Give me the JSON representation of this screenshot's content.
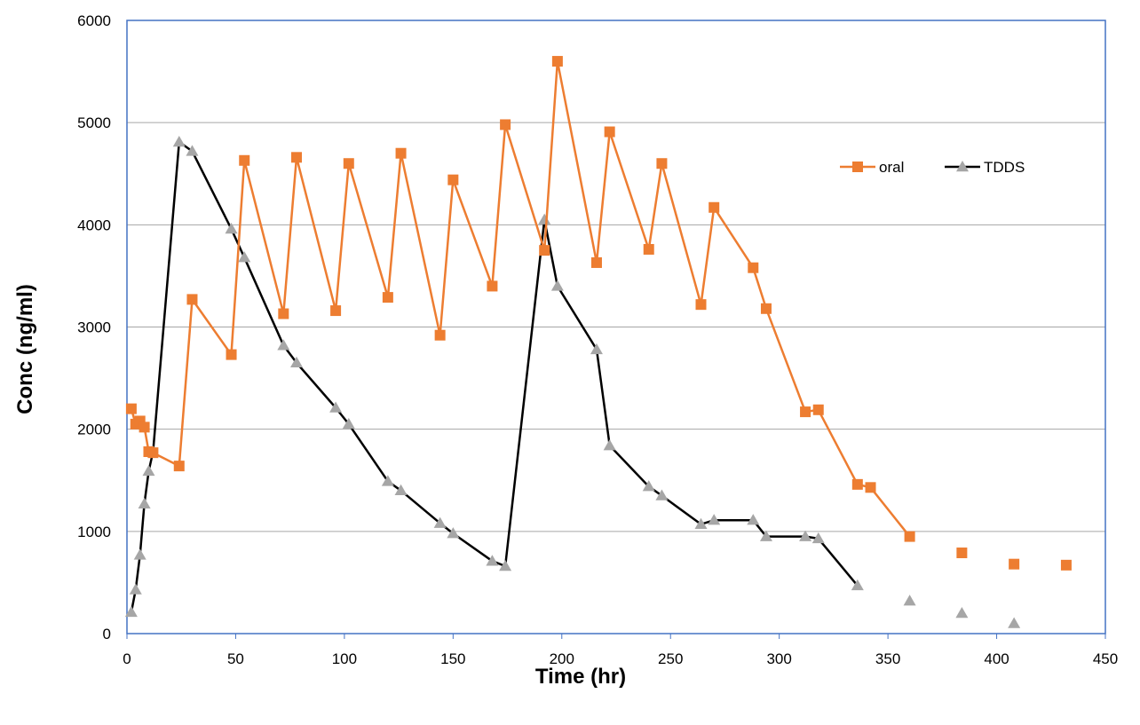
{
  "chart_data": {
    "type": "line",
    "xlabel": "Time (hr)",
    "ylabel": "Conc (ng/ml)",
    "xlim": [
      0,
      450
    ],
    "ylim": [
      0,
      6000
    ],
    "xticks": [
      0,
      50,
      100,
      150,
      200,
      250,
      300,
      350,
      400,
      450
    ],
    "yticks": [
      0,
      1000,
      2000,
      3000,
      4000,
      5000,
      6000
    ],
    "grid": "horizontal",
    "legend_position": "top-right",
    "colors": {
      "oral": "#ED7D31",
      "TDDS_line": "#000000",
      "TDDS_marker": "#A6A6A6",
      "plot_border": "#4472C4",
      "grid": "#A6A6A6"
    },
    "series": [
      {
        "name": "oral",
        "marker": "square",
        "points": [
          [
            2,
            2200
          ],
          [
            4,
            2050
          ],
          [
            6,
            2080
          ],
          [
            8,
            2020
          ],
          [
            10,
            1780
          ],
          [
            12,
            1770
          ],
          [
            24,
            1640
          ],
          [
            30,
            3270
          ],
          [
            48,
            2730
          ],
          [
            54,
            4630
          ],
          [
            72,
            3130
          ],
          [
            78,
            4660
          ],
          [
            96,
            3160
          ],
          [
            102,
            4600
          ],
          [
            120,
            3290
          ],
          [
            126,
            4700
          ],
          [
            144,
            2920
          ],
          [
            150,
            4440
          ],
          [
            168,
            3400
          ],
          [
            174,
            4980
          ],
          [
            192,
            3750
          ],
          [
            198,
            5600
          ],
          [
            216,
            3630
          ],
          [
            222,
            4910
          ],
          [
            240,
            3760
          ],
          [
            246,
            4600
          ],
          [
            264,
            3220
          ],
          [
            270,
            4170
          ],
          [
            288,
            3580
          ],
          [
            294,
            3180
          ],
          [
            312,
            2170
          ],
          [
            318,
            2190
          ],
          [
            336,
            1460
          ],
          [
            342,
            1430
          ],
          [
            360,
            950
          ]
        ],
        "unconnected_points": [
          [
            384,
            790
          ],
          [
            408,
            680
          ],
          [
            432,
            670
          ]
        ]
      },
      {
        "name": "TDDS",
        "marker": "triangle",
        "points": [
          [
            2,
            210
          ],
          [
            4,
            430
          ],
          [
            6,
            770
          ],
          [
            8,
            1270
          ],
          [
            10,
            1590
          ],
          [
            12,
            1780
          ],
          [
            24,
            4810
          ],
          [
            30,
            4720
          ],
          [
            48,
            3960
          ],
          [
            54,
            3680
          ],
          [
            72,
            2820
          ],
          [
            78,
            2650
          ],
          [
            96,
            2210
          ],
          [
            102,
            2050
          ],
          [
            120,
            1490
          ],
          [
            126,
            1400
          ],
          [
            144,
            1080
          ],
          [
            150,
            980
          ],
          [
            168,
            710
          ],
          [
            174,
            660
          ],
          [
            192,
            4050
          ],
          [
            198,
            3400
          ],
          [
            216,
            2780
          ],
          [
            222,
            1840
          ],
          [
            240,
            1440
          ],
          [
            246,
            1350
          ],
          [
            264,
            1070
          ],
          [
            270,
            1110
          ],
          [
            288,
            1110
          ],
          [
            294,
            950
          ],
          [
            312,
            950
          ],
          [
            318,
            930
          ],
          [
            336,
            470
          ]
        ],
        "unconnected_points": [
          [
            360,
            320
          ],
          [
            384,
            200
          ],
          [
            408,
            100
          ]
        ]
      }
    ]
  }
}
